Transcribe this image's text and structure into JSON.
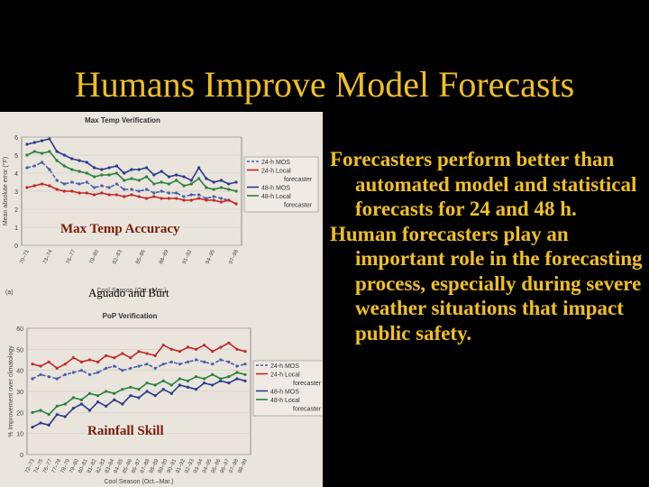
{
  "slide": {
    "title": "Humans Improve Model Forecasts",
    "bullets": [
      "Forecasters perform better than automated model and statistical forecasts for 24 and 48 h.",
      "Human forecasters play an important role in the forecasting process, especially during severe weather situations that impact public safety."
    ],
    "overlays": {
      "top": "Max Temp Accuracy",
      "middle": "Aguado and Burt",
      "bottom": "Rainfall Skill"
    },
    "panel_label": "(a)"
  },
  "chart_data": [
    {
      "type": "line",
      "title": "Max Temp Verification",
      "ylabel": "Mean absolute error (°F)",
      "xlabel": "Cool Season (Oct.–Mar.)",
      "ylim": [
        0,
        6
      ],
      "yticks": [
        0,
        1,
        2,
        3,
        4,
        5,
        6
      ],
      "categories": [
        "70–71",
        "71–72",
        "72–73",
        "73–74",
        "74–75",
        "75–76",
        "76–77",
        "77–78",
        "78–79",
        "79–80",
        "80–81",
        "81–82",
        "82–83",
        "83–84",
        "84–85",
        "85–86",
        "86–87",
        "87–88",
        "88–89",
        "89–90",
        "90–91",
        "91–92",
        "92–93",
        "93–94",
        "94–95",
        "95–96",
        "96–97",
        "97–98",
        "98–99"
      ],
      "tick_labels": [
        "70–71",
        "73–74",
        "76–77",
        "79–80",
        "82–83",
        "85–86",
        "88–89",
        "91–92",
        "94–95",
        "97–98"
      ],
      "series": [
        {
          "name": "24-h MOS",
          "color": "#4a5ea8",
          "dash": true,
          "values": [
            4.3,
            4.4,
            4.6,
            4.2,
            3.6,
            3.4,
            3.5,
            3.4,
            3.5,
            3.2,
            3.3,
            3.2,
            3.4,
            3.1,
            3.1,
            3.0,
            3.1,
            2.9,
            3.0,
            2.9,
            2.9,
            2.7,
            2.8,
            2.8,
            2.6,
            2.7,
            2.6,
            2.5,
            2.3
          ]
        },
        {
          "name": "24-h Local forecaster",
          "color": "#c0282a",
          "dash": false,
          "values": [
            3.2,
            3.3,
            3.4,
            3.3,
            3.1,
            3.0,
            3.0,
            2.9,
            2.9,
            2.8,
            2.9,
            2.8,
            2.8,
            2.7,
            2.8,
            2.7,
            2.6,
            2.7,
            2.6,
            2.6,
            2.6,
            2.5,
            2.5,
            2.6,
            2.5,
            2.5,
            2.4,
            2.5,
            2.3
          ]
        },
        {
          "name": "48-h MOS",
          "color": "#2a3a8c",
          "dash": false,
          "values": [
            5.6,
            5.7,
            5.8,
            5.9,
            5.2,
            5.0,
            4.8,
            4.7,
            4.6,
            4.3,
            4.2,
            4.3,
            4.4,
            4.0,
            4.2,
            4.2,
            4.3,
            3.9,
            4.1,
            3.8,
            3.9,
            3.8,
            3.6,
            4.3,
            3.7,
            3.5,
            3.6,
            3.4,
            3.5
          ]
        },
        {
          "name": "48-h Local forecaster",
          "color": "#2a8040",
          "dash": false,
          "values": [
            5.0,
            5.2,
            5.1,
            5.2,
            4.7,
            4.4,
            4.2,
            4.1,
            4.0,
            3.8,
            3.9,
            3.9,
            4.0,
            3.6,
            3.7,
            3.6,
            3.8,
            3.4,
            3.5,
            3.4,
            3.6,
            3.3,
            3.4,
            3.7,
            3.2,
            3.1,
            3.2,
            3.1,
            3.0
          ]
        }
      ]
    },
    {
      "type": "line",
      "title": "PoP Verification",
      "ylabel": "% Improvement over climatology",
      "xlabel": "Cool Season (Oct.–Mar.)",
      "ylim": [
        0,
        60
      ],
      "yticks": [
        0,
        10,
        20,
        30,
        40,
        50,
        60
      ],
      "categories": [
        "72–73",
        "73–74",
        "74–75",
        "75–76",
        "76–77",
        "77–78",
        "78–79",
        "79–80",
        "80–81",
        "81–82",
        "82–83",
        "83–84",
        "84–85",
        "85–86",
        "86–87",
        "87–88",
        "88–89",
        "89–90",
        "90–91",
        "91–92",
        "92–93",
        "93–94",
        "94–95",
        "95–96",
        "96–97",
        "97–98",
        "98–99"
      ],
      "tick_labels": [
        "72–73",
        "74–75",
        "76–77",
        "77–78",
        "78–79",
        "79–80",
        "80–81",
        "81–82",
        "82–83",
        "83–84",
        "84–85",
        "85–86",
        "86–87",
        "87–88",
        "88–89",
        "89–90",
        "90–91",
        "91–92",
        "92–93",
        "93–94",
        "94–95",
        "95–96",
        "96–97",
        "97–98",
        "98–99"
      ],
      "series": [
        {
          "name": "24-h MOS",
          "color": "#4a5ea8",
          "dash": true,
          "values": [
            36,
            38,
            37,
            36,
            38,
            39,
            40,
            38,
            39,
            41,
            42,
            40,
            41,
            42,
            43,
            41,
            43,
            44,
            43,
            44,
            45,
            44,
            43,
            45,
            44,
            42,
            43
          ]
        },
        {
          "name": "24-h Local forecaster",
          "color": "#c0282a",
          "dash": false,
          "values": [
            43,
            42,
            44,
            41,
            43,
            46,
            44,
            45,
            44,
            47,
            46,
            48,
            46,
            49,
            48,
            47,
            52,
            50,
            49,
            51,
            50,
            52,
            49,
            51,
            53,
            50,
            49
          ]
        },
        {
          "name": "48-h MOS",
          "color": "#2a3a8c",
          "dash": false,
          "values": [
            13,
            15,
            14,
            19,
            18,
            22,
            24,
            21,
            25,
            23,
            26,
            24,
            28,
            27,
            30,
            28,
            31,
            29,
            33,
            32,
            31,
            34,
            33,
            35,
            34,
            36,
            35
          ]
        },
        {
          "name": "48-h Local forecaster",
          "color": "#2a8040",
          "dash": false,
          "values": [
            20,
            21,
            19,
            23,
            24,
            27,
            26,
            29,
            28,
            30,
            29,
            31,
            32,
            31,
            34,
            33,
            35,
            33,
            36,
            35,
            37,
            36,
            38,
            36,
            37,
            39,
            38
          ]
        }
      ]
    }
  ]
}
